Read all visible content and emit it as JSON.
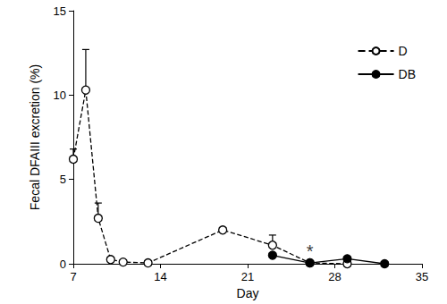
{
  "chart_data": {
    "type": "line",
    "x_label": "Day",
    "y_label": "Fecal DFAIII excretion (%)",
    "xlim": [
      7,
      35
    ],
    "xticks": [
      7,
      14,
      21,
      28,
      35
    ],
    "ylim": [
      0,
      15
    ],
    "yticks": [
      0,
      5,
      10,
      15
    ],
    "grid": false,
    "legend": "upper right",
    "series": [
      {
        "name": "D",
        "color": "#000000",
        "marker": "open circle",
        "line_style": "dashed",
        "x": [
          7,
          8,
          9,
          10,
          11,
          13,
          19,
          23,
          26,
          29
        ],
        "values": [
          6.2,
          10.3,
          2.7,
          0.25,
          0.1,
          0.05,
          2.0,
          1.1,
          0.05,
          0.0
        ],
        "errors": [
          0.6,
          2.4,
          0.9,
          null,
          null,
          null,
          0.15,
          0.6,
          null,
          null
        ]
      },
      {
        "name": "DB",
        "color": "#000000",
        "marker": "filled circle",
        "line_style": "solid",
        "x": [
          23,
          26,
          29,
          32
        ],
        "values": [
          0.5,
          0.05,
          0.3,
          0.0
        ],
        "errors": [
          null,
          null,
          null,
          null
        ]
      }
    ],
    "annotations": [
      {
        "text": "*",
        "x": 26,
        "y": 0.75
      }
    ]
  }
}
